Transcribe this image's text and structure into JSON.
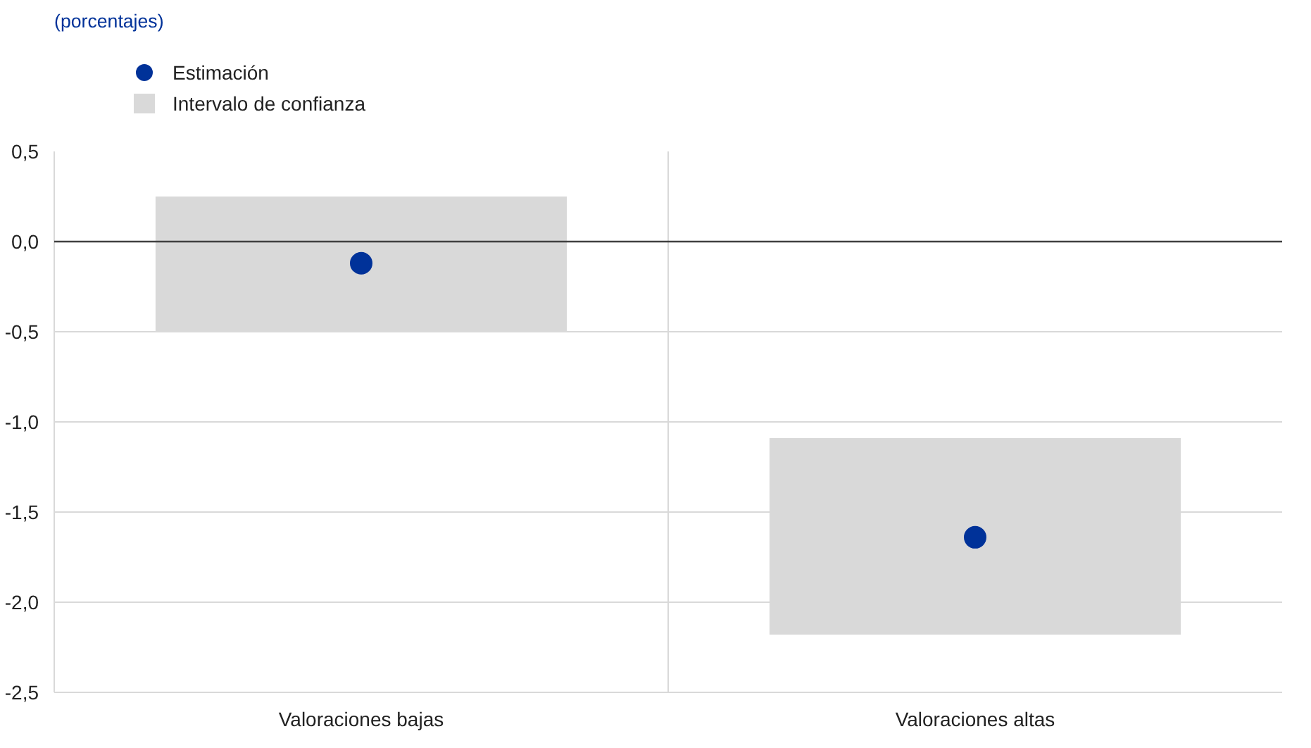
{
  "chart_data": {
    "type": "bar",
    "subtitle": "(porcentajes)",
    "categories": [
      "Valoraciones bajas",
      "Valoraciones altas"
    ],
    "series": [
      {
        "name": "Intervalo de confianza",
        "color": "#d9d9d9",
        "base": [
          -0.5,
          -2.18
        ],
        "values": [
          0.75,
          1.09
        ]
      },
      {
        "type": "scatter",
        "name": "Estimación",
        "color": "#003299",
        "values": [
          -0.12,
          -1.64
        ]
      }
    ],
    "ylim": [
      -2.5,
      0.5
    ],
    "yticks": [
      {
        "value": 0.5,
        "label": "0,5"
      },
      {
        "value": 0,
        "label": "0,0"
      },
      {
        "value": -0.5,
        "label": "-0,5"
      },
      {
        "value": -1,
        "label": "-1,0"
      },
      {
        "value": -1.5,
        "label": "-1,5"
      },
      {
        "value": -2,
        "label": "-2,0"
      },
      {
        "value": -2.5,
        "label": "-2,5"
      }
    ],
    "ref_lines": [
      {
        "axis": "y",
        "value": 0,
        "color": "#404040"
      }
    ],
    "grid": true,
    "legend": "top left",
    "marker": "circle"
  }
}
